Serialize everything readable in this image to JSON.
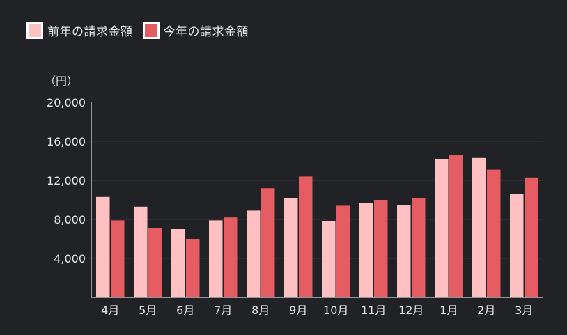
{
  "chart_data": {
    "type": "bar",
    "unit_label": "（円）",
    "categories": [
      "4月",
      "5月",
      "6月",
      "7月",
      "8月",
      "9月",
      "10月",
      "11月",
      "12月",
      "1月",
      "2月",
      "3月"
    ],
    "series": [
      {
        "name": "前年の請求金額",
        "color": "#ffc0c2",
        "values": [
          10300,
          9300,
          7000,
          7900,
          8900,
          10200,
          7800,
          9700,
          9500,
          14200,
          14300,
          10600
        ]
      },
      {
        "name": "今年の請求金額",
        "color": "#e55c62",
        "values": [
          7900,
          7100,
          6000,
          8200,
          11200,
          12400,
          9400,
          10000,
          10200,
          14600,
          13100,
          12300
        ]
      }
    ],
    "yticks": [
      "4,000",
      "8,000",
      "12,000",
      "16,000",
      "20,000"
    ],
    "ylim": [
      0,
      20000
    ],
    "grid": true,
    "legend_position": "top-left"
  }
}
